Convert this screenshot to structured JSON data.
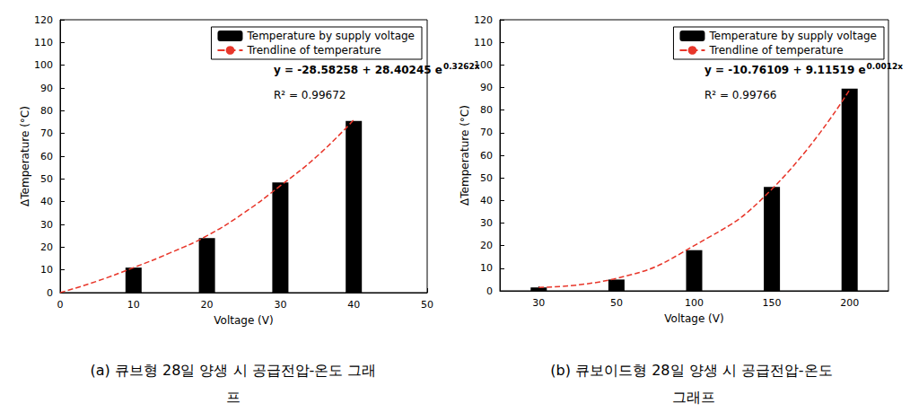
{
  "chart_data": [
    {
      "type": "bar",
      "title": "(a) 큐브형 28일 양생 시 공급전압-온도 그래프",
      "x_label": "Voltage (V)",
      "y_label": "ΔTemperature (°C)",
      "x": [
        10,
        20,
        30,
        40
      ],
      "xlim": [
        0,
        50
      ],
      "xticks": [
        0,
        10,
        20,
        30,
        40,
        50
      ],
      "ylim": [
        0,
        120
      ],
      "yticks": [
        0,
        10,
        20,
        30,
        40,
        50,
        60,
        70,
        80,
        90,
        100,
        110,
        120
      ],
      "grid": false,
      "legend": "upper right",
      "equation": {
        "base": "y = -28.58258 + 28.40245 e",
        "exponent": "0.3262x"
      },
      "r_squared": "R² = 0.99672",
      "series": [
        {
          "name": "Temperature by supply voltage",
          "type": "bar",
          "color": "#000000",
          "values": [
            11,
            24,
            48.5,
            75.5
          ]
        },
        {
          "name": "Trendline of temperature",
          "type": "line",
          "color": "#e8362a",
          "line_style": "dashed",
          "x": [
            0,
            5,
            10,
            15,
            20,
            25,
            30,
            35,
            40
          ],
          "values": [
            0,
            5,
            11,
            17.5,
            25,
            35,
            47,
            60,
            76
          ]
        }
      ]
    },
    {
      "type": "bar",
      "title": "(b) 큐보이드형 28일 양생 시 공급전압-온도 그래프",
      "x_label": "Voltage (V)",
      "y_label": "ΔTemperature (°C)",
      "categories": [
        "30",
        "50",
        "100",
        "150",
        "200"
      ],
      "ylim": [
        0,
        120
      ],
      "yticks": [
        0,
        10,
        20,
        30,
        40,
        50,
        60,
        70,
        80,
        90,
        100,
        110,
        120
      ],
      "grid": false,
      "legend": "upper right",
      "equation": {
        "base": "y = -10.76109 + 9.11519 e",
        "exponent": "0.0012x"
      },
      "r_squared": "R² = 0.99766",
      "series": [
        {
          "name": "Temperature by supply voltage",
          "type": "bar",
          "color": "#000000",
          "values": [
            1.5,
            5,
            18,
            46,
            89.5
          ]
        },
        {
          "name": "Trendline of temperature",
          "type": "line",
          "color": "#e8362a",
          "line_style": "dashed",
          "values": [
            1.5,
            5.5,
            20,
            45,
            89
          ]
        }
      ]
    }
  ]
}
